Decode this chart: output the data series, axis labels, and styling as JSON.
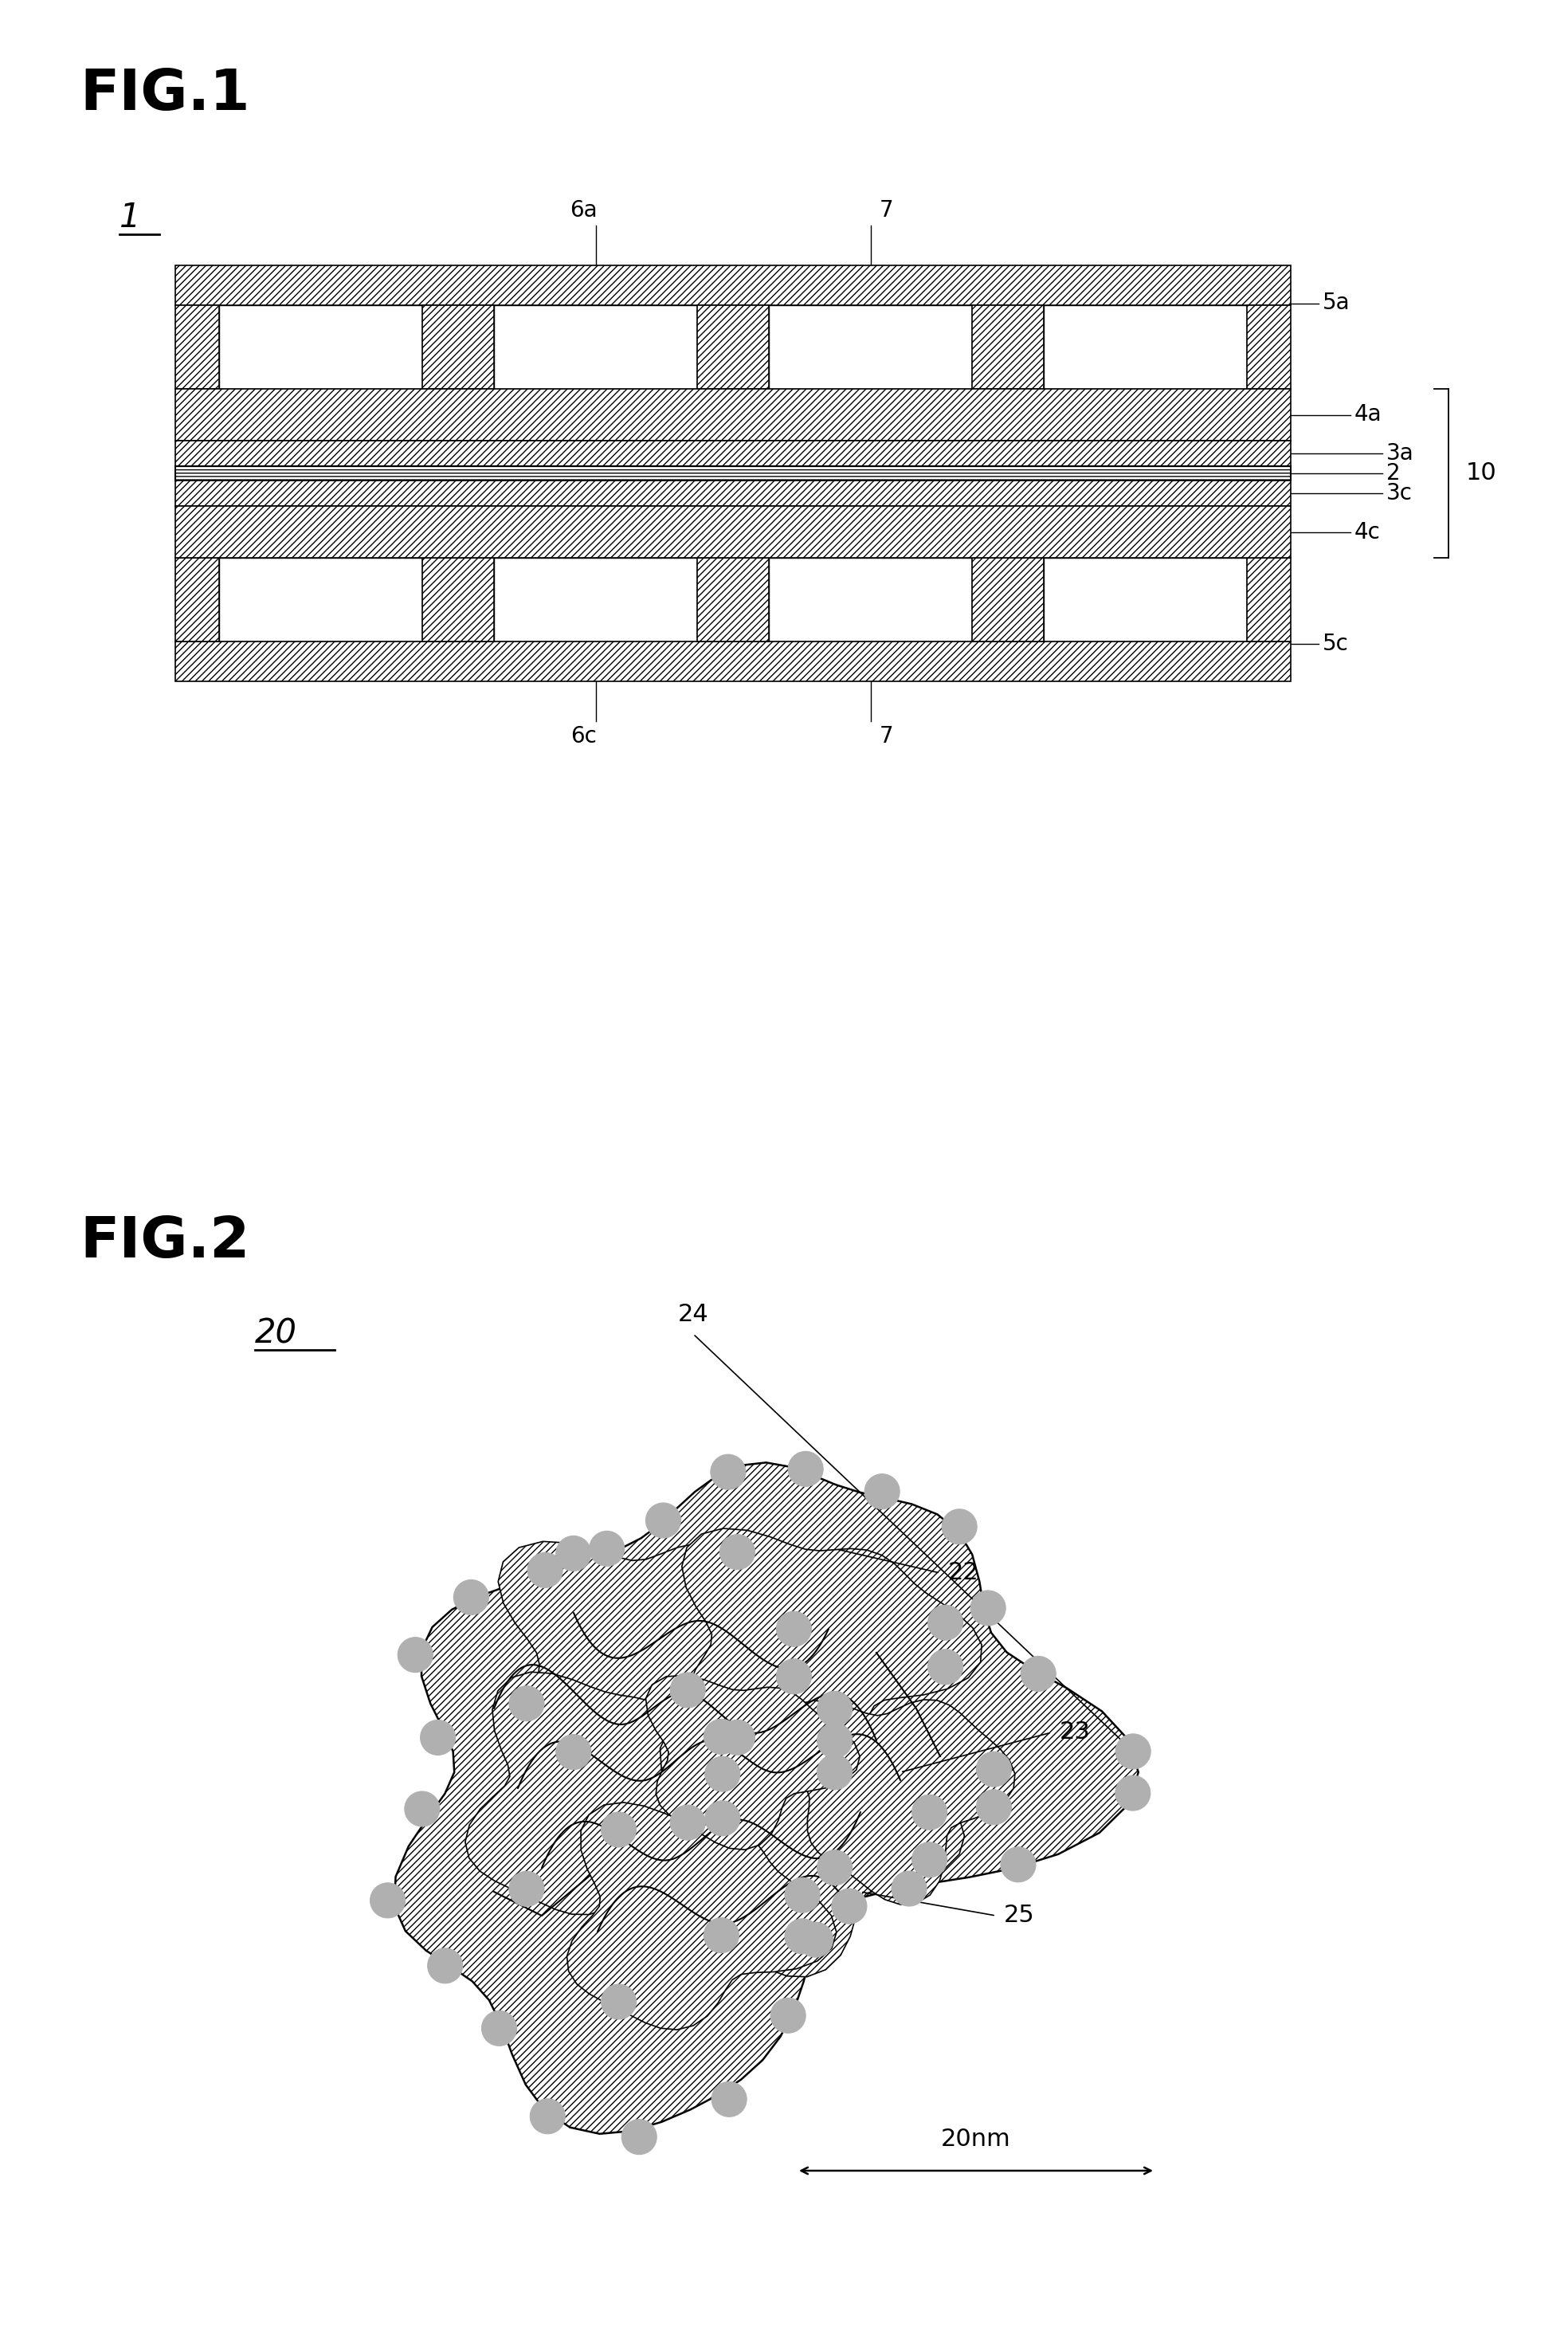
{
  "fig1_title": "FIG.1",
  "fig2_title": "FIG.2",
  "label_1": "1",
  "label_2": "2",
  "label_3a": "3a",
  "label_3c": "3c",
  "label_4a": "4a",
  "label_4c": "4c",
  "label_5a": "5a",
  "label_5c": "5c",
  "label_6a": "6a",
  "label_6c": "6c",
  "label_7a": "7",
  "label_7c": "7",
  "label_10": "10",
  "label_20": "20",
  "label_22": "22",
  "label_23": "23",
  "label_24": "24",
  "label_25": "25",
  "label_20nm": "20nm",
  "bg_color": "#ffffff",
  "line_color": "#000000"
}
